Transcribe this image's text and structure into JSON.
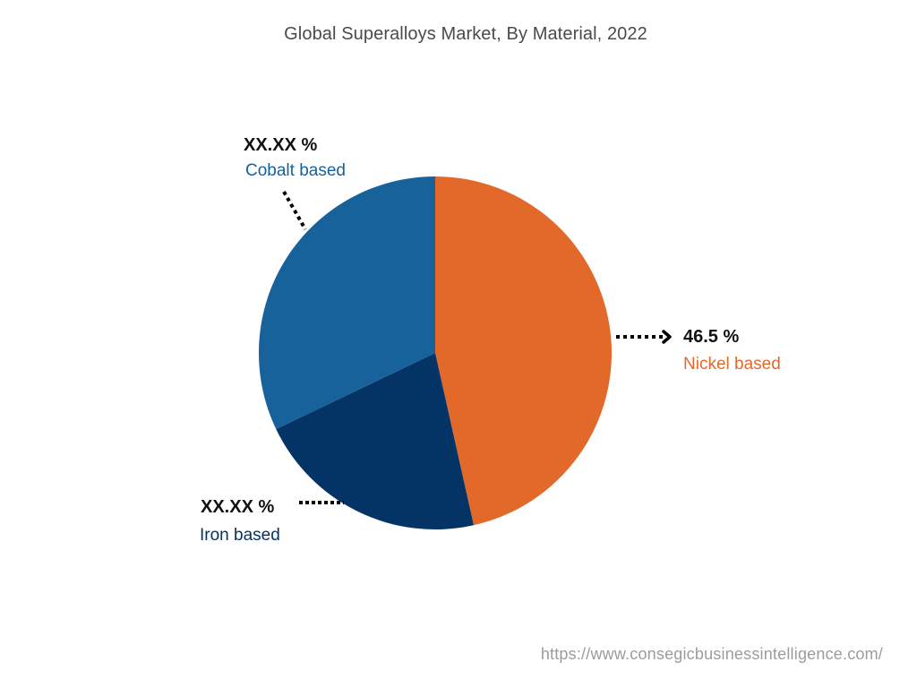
{
  "chart_data": {
    "type": "pie",
    "title": "Global Superalloys Market, By Material, 2022",
    "categories": [
      "Nickel based",
      "Iron based",
      "Cobalt based"
    ],
    "values": [
      46.5,
      21.4,
      32.1
    ],
    "value_labels": [
      "46.5 %",
      "XX.XX %",
      "XX.XX %"
    ],
    "colors": [
      "#e3692a",
      "#043465",
      "#17629a"
    ],
    "start_angle_deg": 0,
    "direction": "clockwise",
    "legend": "none (callout labels)"
  },
  "labels": {
    "nickel": {
      "value": "46.5 %",
      "name": "Nickel based",
      "color": "#e3692a"
    },
    "iron": {
      "value": "XX.XX %",
      "name": "Iron based",
      "color": "#043465"
    },
    "cobalt": {
      "value": "XX.XX %",
      "name": "Cobalt based",
      "color": "#17629a"
    }
  },
  "footer": {
    "url": "https://www.consegicbusinessintelligence.com/"
  }
}
